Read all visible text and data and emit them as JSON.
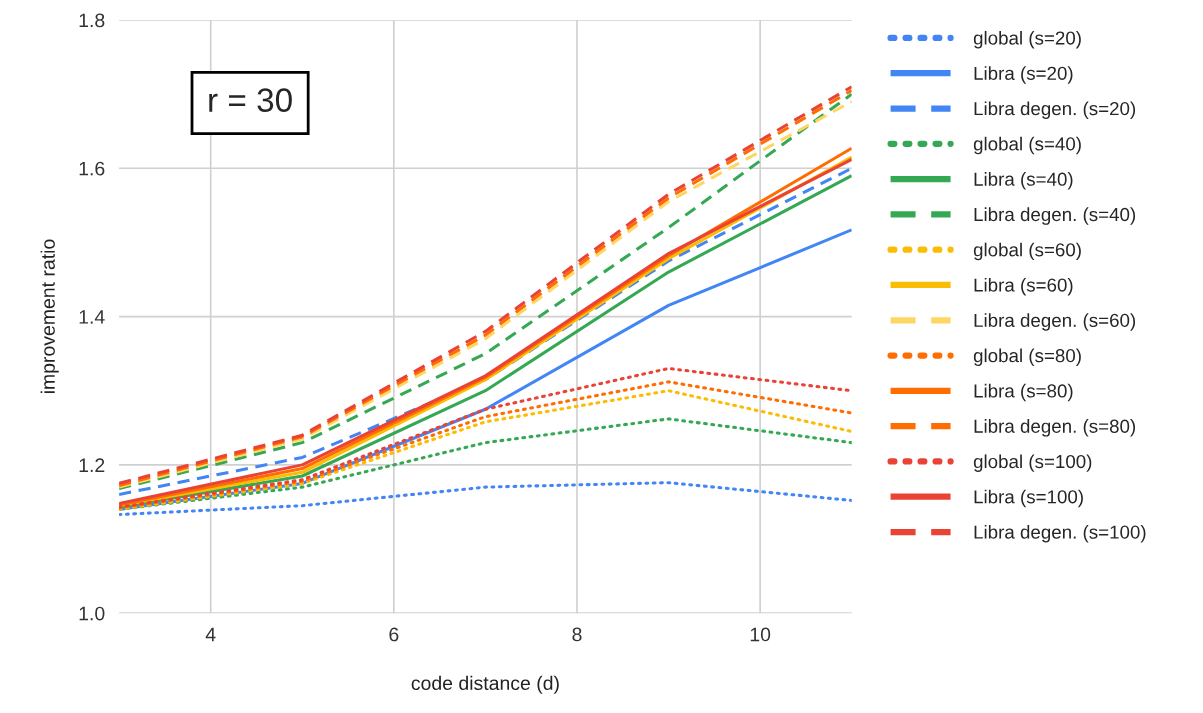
{
  "chart_data": {
    "type": "line",
    "xlabel": "code distance (d)",
    "ylabel": "improvement ratio",
    "x": [
      3,
      5,
      7,
      9,
      11
    ],
    "xlim": [
      3,
      11
    ],
    "xticks": [
      4,
      6,
      8,
      10
    ],
    "ylim": [
      1.0,
      1.8
    ],
    "yticks": [
      {
        "value": 1.0,
        "label": "1.0"
      },
      {
        "value": 1.2,
        "label": "1.2"
      },
      {
        "value": 1.4,
        "label": "1.4"
      },
      {
        "value": 1.6,
        "label": "1.6"
      },
      {
        "value": 1.8,
        "label": "1.8"
      }
    ],
    "grid": true,
    "legend": "right",
    "marker": "none",
    "annotations": [
      "r = 30"
    ],
    "series": [
      {
        "name": "global (s=20)",
        "color": "#4285f4",
        "line_style": "dotted",
        "values": [
          1.133,
          1.145,
          1.17,
          1.176,
          1.152
        ]
      },
      {
        "name": "Libra (s=20)",
        "color": "#4285f4",
        "line_style": "solid",
        "values": [
          1.14,
          1.175,
          1.275,
          1.415,
          1.517
        ]
      },
      {
        "name": "Libra degen. (s=20)",
        "color": "#4285f4",
        "line_style": "dashed",
        "values": [
          1.16,
          1.21,
          1.315,
          1.475,
          1.6
        ]
      },
      {
        "name": "global (s=40)",
        "color": "#34a853",
        "line_style": "dotted",
        "values": [
          1.14,
          1.17,
          1.23,
          1.262,
          1.23
        ]
      },
      {
        "name": "Libra (s=40)",
        "color": "#34a853",
        "line_style": "solid",
        "values": [
          1.143,
          1.185,
          1.3,
          1.46,
          1.59
        ]
      },
      {
        "name": "Libra degen. (s=40)",
        "color": "#34a853",
        "line_style": "dashed",
        "values": [
          1.168,
          1.23,
          1.35,
          1.52,
          1.7
        ]
      },
      {
        "name": "global (s=60)",
        "color": "#fbbc04",
        "line_style": "dotted",
        "values": [
          1.14,
          1.175,
          1.258,
          1.3,
          1.245
        ]
      },
      {
        "name": "Libra (s=60)",
        "color": "#fbbc04",
        "line_style": "solid",
        "values": [
          1.145,
          1.19,
          1.315,
          1.478,
          1.615
        ]
      },
      {
        "name": "Libra degen. (s=60)",
        "color": "#fdd663",
        "line_style": "dashed",
        "values": [
          1.17,
          1.235,
          1.37,
          1.555,
          1.69
        ]
      },
      {
        "name": "global (s=80)",
        "color": "#ff6d01",
        "line_style": "dotted",
        "values": [
          1.142,
          1.178,
          1.265,
          1.312,
          1.27
        ]
      },
      {
        "name": "Libra (s=80)",
        "color": "#ff6d01",
        "line_style": "solid",
        "values": [
          1.146,
          1.195,
          1.318,
          1.482,
          1.627
        ]
      },
      {
        "name": "Libra degen. (s=80)",
        "color": "#ff6d01",
        "line_style": "dashed",
        "values": [
          1.172,
          1.238,
          1.375,
          1.56,
          1.705
        ]
      },
      {
        "name": "global (s=100)",
        "color": "#ea4335",
        "line_style": "dotted",
        "values": [
          1.143,
          1.18,
          1.275,
          1.33,
          1.3
        ]
      },
      {
        "name": "Libra (s=100)",
        "color": "#ea4335",
        "line_style": "solid",
        "values": [
          1.148,
          1.2,
          1.32,
          1.485,
          1.612
        ]
      },
      {
        "name": "Libra degen. (s=100)",
        "color": "#ea4335",
        "line_style": "dashed",
        "values": [
          1.175,
          1.24,
          1.38,
          1.565,
          1.71
        ]
      }
    ]
  }
}
